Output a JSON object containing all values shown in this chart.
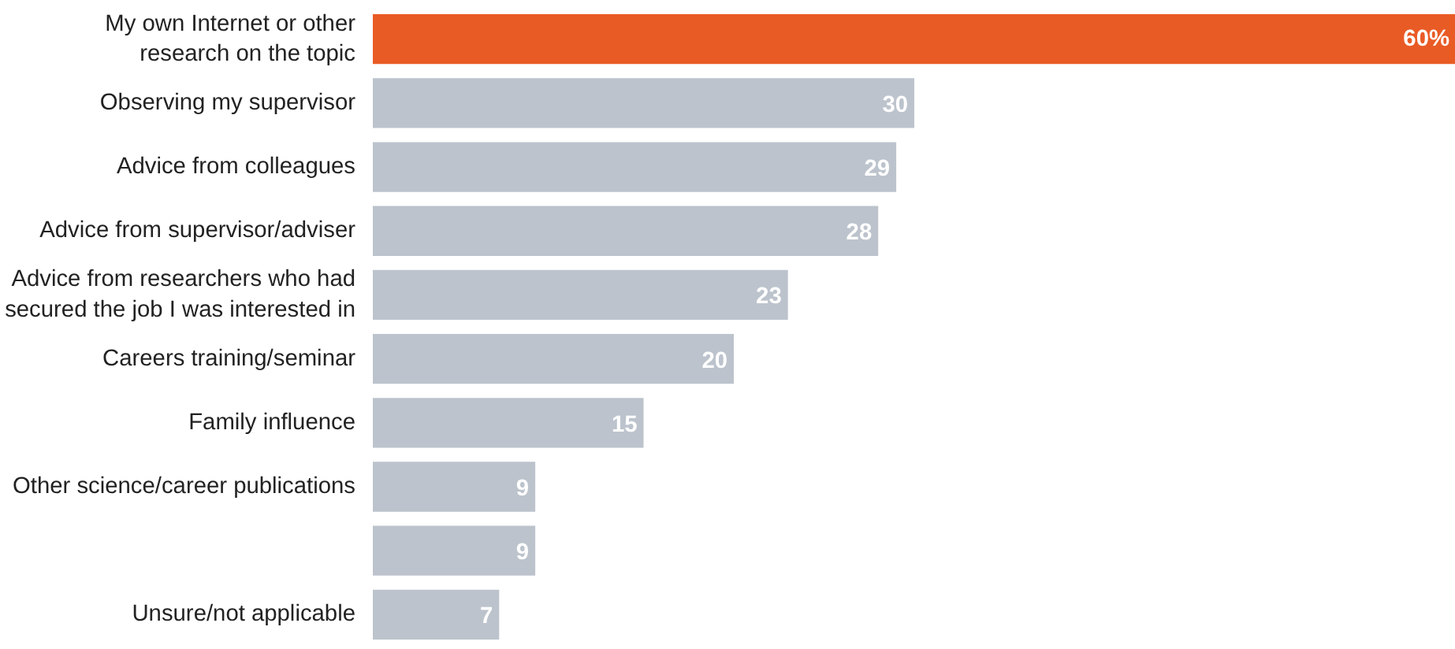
{
  "chart_data": {
    "type": "bar",
    "orientation": "horizontal",
    "categories": [
      "My own Internet or other\nresearch on the topic",
      "Observing my supervisor",
      "Advice from colleagues",
      "Advice from supervisor/adviser",
      "Advice from researchers who had\nsecured the job I was interested in",
      "Careers training/seminar",
      "Family influence",
      "Other science/career publications",
      null,
      "Unsure/not applicable"
    ],
    "values": [
      60,
      30,
      29,
      28,
      23,
      20,
      15,
      9,
      9,
      7
    ],
    "colors": [
      "#e95b25",
      "#bcc3cc",
      "#bcc3cc",
      "#bcc3cc",
      "#bcc3cc",
      "#bcc3cc",
      "#bcc3cc",
      "#bcc3cc",
      "#bcc3cc",
      "#bcc3cc"
    ],
    "value_labels": [
      "60%",
      "30",
      "29",
      "28",
      "23",
      "20",
      "15",
      "9",
      "9",
      "7"
    ]
  }
}
